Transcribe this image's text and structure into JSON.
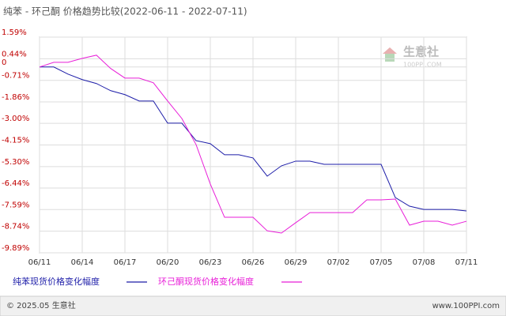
{
  "chart_data": {
    "type": "line",
    "title": "纯苯 - 环己酮 价格趋势比较(2022-06-11 - 2022-07-11)",
    "categories": [
      "06/11",
      null,
      null,
      "06/14",
      null,
      null,
      "06/17",
      null,
      null,
      "06/20",
      null,
      null,
      "06/23",
      null,
      null,
      "06/26",
      null,
      null,
      "06/29",
      null,
      null,
      "07/02",
      null,
      null,
      "07/05",
      null,
      null,
      "07/08",
      null,
      null,
      "07/11"
    ],
    "series": [
      {
        "name": "纯苯现货价格变化幅度",
        "color": "#1c1ca8",
        "values": [
          0,
          0,
          -0.38,
          -0.67,
          -0.88,
          -1.26,
          -1.47,
          -1.81,
          -1.81,
          -2.99,
          -2.99,
          -3.92,
          -4.08,
          -4.67,
          -4.67,
          -4.84,
          -5.81,
          -5.26,
          -5.01,
          -5.01,
          -5.18,
          -5.18,
          -5.18,
          -5.18,
          -5.18,
          -6.95,
          -7.41,
          -7.58,
          -7.58,
          -7.58,
          -7.66
        ]
      },
      {
        "name": "环己酮现货价格变化幅度",
        "color": "#e81ed8",
        "values": [
          0,
          0.25,
          0.25,
          0.46,
          0.63,
          -0.08,
          -0.59,
          -0.59,
          -0.84,
          -1.81,
          -2.74,
          -4.13,
          -6.23,
          -8.0,
          -8.0,
          -8.0,
          -8.72,
          -8.84,
          -8.29,
          -7.75,
          -7.75,
          -7.75,
          -7.75,
          -7.07,
          -7.07,
          -7.03,
          -8.42,
          -8.21,
          -8.21,
          -8.42,
          -8.21
        ]
      }
    ],
    "ylim": [
      -9.89,
      1.59
    ],
    "yticks": [
      {
        "value": 1.59,
        "label": "1.59%"
      },
      {
        "value": 0.44,
        "label": "0.44%"
      },
      0,
      {
        "value": -0.71,
        "label": "-0.71%"
      },
      {
        "value": -1.86,
        "label": "-1.86%"
      },
      {
        "value": -3.0,
        "label": "-3.00%"
      },
      {
        "value": -4.15,
        "label": "-4.15%"
      },
      {
        "value": -5.3,
        "label": "-5.30%"
      },
      {
        "value": -6.44,
        "label": "-6.44%"
      },
      {
        "value": -7.59,
        "label": "-7.59%"
      },
      {
        "value": -8.74,
        "label": "-8.74%"
      },
      {
        "value": -9.89,
        "label": "-9.89%"
      }
    ],
    "grid": true
  },
  "watermark": {
    "name": "生意社",
    "url": "100PPI.COM"
  },
  "footer": {
    "copyright": "© 2025.05 生意社",
    "site": "www.100PPI.com"
  }
}
